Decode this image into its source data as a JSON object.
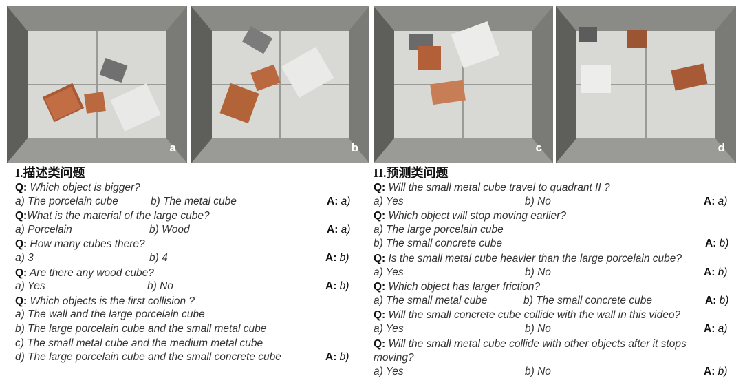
{
  "colors": {
    "wall": "#6f706c",
    "floor": "#d8d8d4",
    "copper": "#b5643c",
    "porcelain": "#e8e8e6",
    "concrete": "#6a6a6a"
  },
  "panels": [
    {
      "label": "a"
    },
    {
      "label": "b"
    },
    {
      "label": "c"
    },
    {
      "label": "d"
    }
  ],
  "left": {
    "heading": "I.描述类问题",
    "items": [
      {
        "q_key": "Q:",
        "question": " Which object is bigger?",
        "opt1": "a)   The porcelain cube",
        "opt2": "b)  The metal cube",
        "ans_key": "A:",
        "ans_val": " a)"
      },
      {
        "q_key": "Q:",
        "question": "What is the material of the large cube?",
        "opt1": "a)   Porcelain",
        "opt2": "b)   Wood",
        "ans_key": "A:",
        "ans_val": " a)"
      },
      {
        "q_key": "Q:",
        "question": " How many cubes there?",
        "opt1": "a)     3",
        "opt2": "b)   4",
        "ans_key": "A:",
        "ans_val": " b)"
      },
      {
        "q_key": "Q:",
        "question": " Are there any wood cube?",
        "opt1": "a)    Yes",
        "opt2": "b)  No",
        "ans_key": "A:",
        "ans_val": " b)"
      },
      {
        "q_key": "Q:",
        "question": " Which objects is the first collision ?",
        "lines": [
          "a)   The wall and the large porcelain cube",
          "b)   The large porcelain cube and the small metal cube",
          "c)   The small metal cube and the medium metal cube",
          "d)  The large porcelain cube and the small concrete cube"
        ],
        "ans_key": "A:",
        "ans_val": " b)"
      }
    ]
  },
  "right": {
    "heading": "II.预测类问题",
    "items": [
      {
        "q_key": "Q:",
        "question": " Will the small metal cube travel to quadrant  II ?",
        "opt1": "a)    Yes",
        "opt2": "b)   No",
        "ans_key": "A:",
        "ans_val": " a)"
      },
      {
        "q_key": "Q:",
        "question": " Which object will stop moving earlier?",
        "line1": "a)    The large porcelain cube",
        "line2": "b)    The small concrete cube",
        "ans_key": "A:",
        "ans_val": " b)"
      },
      {
        "q_key": "Q:",
        "question": " Is the small metal cube heavier than the large porcelain cube?",
        "opt1": "a)    Yes",
        "opt2": "b)   No",
        "ans_key": "A:",
        "ans_val": " b)"
      },
      {
        "q_key": "Q:",
        "question": " Which object has larger friction?",
        "opt1": "a)    The small metal cube",
        "opt2": "b) The small concrete cube",
        "ans_key": "A:",
        "ans_val": " b)"
      },
      {
        "q_key": "Q:",
        "question": " Will the small concrete cube collide with the wall in this video?",
        "opt1": "a)    Yes",
        "opt2": "b)   No",
        "ans_key": "A:",
        "ans_val": " a)"
      },
      {
        "q_key": "Q:",
        "question": "  Will the small metal cube collide with other objects after it stops",
        "question_cont": "moving?",
        "opt1": "a)    Yes",
        "opt2": "b)   No",
        "ans_key": "A:",
        "ans_val": " b)"
      }
    ]
  }
}
